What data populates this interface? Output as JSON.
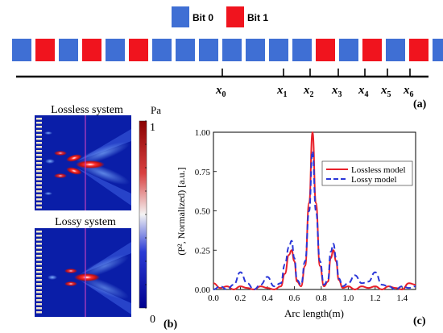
{
  "colors": {
    "bit0": "#3f6fd4",
    "bit1": "#f0141e",
    "lossless_line": "#e8202a",
    "lossy_line": "#2a36d8"
  },
  "panel_a": {
    "legend": {
      "bit0_label": "Bit 0",
      "bit1_label": "Bit 1"
    },
    "bits": [
      0,
      1,
      0,
      1,
      0,
      1,
      0,
      0,
      0,
      0,
      0,
      0,
      0,
      1,
      0,
      1,
      0,
      1,
      0
    ],
    "positions": [
      {
        "base": "x",
        "sub": "0"
      },
      {
        "base": "x",
        "sub": "1"
      },
      {
        "base": "x",
        "sub": "2"
      },
      {
        "base": "x",
        "sub": "3"
      },
      {
        "base": "x",
        "sub": "4"
      },
      {
        "base": "x",
        "sub": "5"
      },
      {
        "base": "x",
        "sub": "6"
      }
    ],
    "label": "(a)"
  },
  "panel_b": {
    "top_title": "Lossless system",
    "bottom_title": "Lossy system",
    "colorbar_unit": "Pa",
    "colorbar_max": "1",
    "colorbar_min": "0",
    "label": "(b)"
  },
  "panel_c": {
    "label": "(c)",
    "chart_data": {
      "type": "line",
      "xlabel": "Arc length(m)",
      "ylabel": "(P², Normalized) [a.u.]",
      "xlim": [
        0.0,
        1.5
      ],
      "ylim": [
        0.0,
        1.0
      ],
      "x_ticks": [
        "0.0",
        "0.2",
        "0.4",
        "0.6",
        "0.8",
        "1.0",
        "1.2",
        "1.4"
      ],
      "y_ticks": [
        "0.00",
        "0.25",
        "0.50",
        "0.75",
        "1.00"
      ],
      "legend_position": "top-right",
      "series": [
        {
          "name": "Lossless model",
          "style": "solid",
          "x": [
            0.0,
            0.05,
            0.1,
            0.15,
            0.2,
            0.25,
            0.3,
            0.35,
            0.4,
            0.45,
            0.5,
            0.53,
            0.56,
            0.58,
            0.6,
            0.62,
            0.65,
            0.68,
            0.71,
            0.735,
            0.76,
            0.79,
            0.82,
            0.85,
            0.87,
            0.89,
            0.91,
            0.93,
            0.96,
            1.0,
            1.05,
            1.1,
            1.15,
            1.2,
            1.25,
            1.3,
            1.35,
            1.4,
            1.45,
            1.5
          ],
          "y": [
            0.04,
            0.01,
            0.02,
            0.0,
            0.02,
            0.01,
            0.0,
            0.02,
            0.01,
            0.0,
            0.02,
            0.1,
            0.22,
            0.25,
            0.18,
            0.05,
            0.02,
            0.15,
            0.55,
            1.0,
            0.55,
            0.15,
            0.02,
            0.05,
            0.2,
            0.25,
            0.18,
            0.06,
            0.01,
            0.02,
            0.0,
            0.02,
            0.01,
            0.02,
            0.0,
            0.02,
            0.01,
            0.0,
            0.04,
            0.03
          ]
        },
        {
          "name": "Lossy model",
          "style": "dashed",
          "x": [
            0.0,
            0.05,
            0.1,
            0.15,
            0.2,
            0.25,
            0.3,
            0.35,
            0.4,
            0.45,
            0.5,
            0.53,
            0.56,
            0.58,
            0.6,
            0.62,
            0.65,
            0.68,
            0.71,
            0.735,
            0.76,
            0.79,
            0.82,
            0.85,
            0.87,
            0.89,
            0.91,
            0.93,
            0.96,
            1.0,
            1.05,
            1.1,
            1.15,
            1.2,
            1.25,
            1.3,
            1.35,
            1.4,
            1.45,
            1.5
          ],
          "y": [
            0.0,
            0.02,
            0.0,
            0.03,
            0.11,
            0.04,
            0.0,
            0.03,
            0.08,
            0.02,
            0.04,
            0.16,
            0.27,
            0.31,
            0.2,
            0.06,
            0.03,
            0.18,
            0.5,
            0.88,
            0.5,
            0.18,
            0.03,
            0.06,
            0.24,
            0.29,
            0.2,
            0.07,
            0.02,
            0.04,
            0.09,
            0.04,
            0.05,
            0.11,
            0.03,
            0.02,
            0.0,
            0.02,
            0.01,
            0.02
          ]
        }
      ]
    }
  }
}
